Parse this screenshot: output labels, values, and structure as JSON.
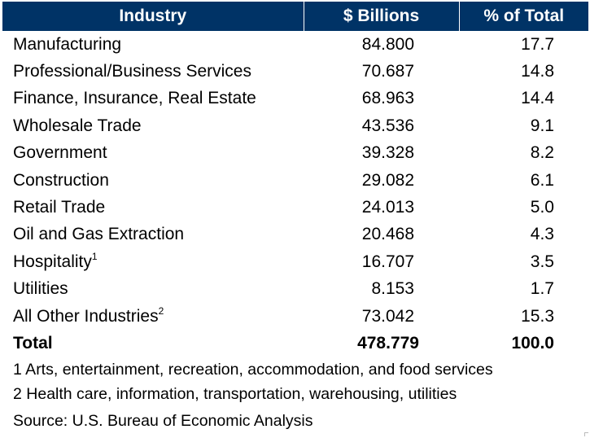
{
  "chart_data": {
    "type": "table",
    "columns": [
      "Industry",
      "$ Billions",
      "% of Total"
    ],
    "rows": [
      {
        "industry": "Manufacturing",
        "note": "",
        "billions": "84.800",
        "pct": "17.7"
      },
      {
        "industry": "Professional/Business Services",
        "note": "",
        "billions": "70.687",
        "pct": "14.8"
      },
      {
        "industry": "Finance, Insurance, Real Estate",
        "note": "",
        "billions": "68.963",
        "pct": "14.4"
      },
      {
        "industry": "Wholesale Trade",
        "note": "",
        "billions": "43.536",
        "pct": "9.1"
      },
      {
        "industry": "Government",
        "note": "",
        "billions": "39.328",
        "pct": "8.2"
      },
      {
        "industry": "Construction",
        "note": "",
        "billions": "29.082",
        "pct": "6.1"
      },
      {
        "industry": "Retail Trade",
        "note": "",
        "billions": "24.013",
        "pct": "5.0"
      },
      {
        "industry": "Oil and Gas Extraction",
        "note": "",
        "billions": "20.468",
        "pct": "4.3"
      },
      {
        "industry": "Hospitality",
        "note": "1",
        "billions": "16.707",
        "pct": "3.5"
      },
      {
        "industry": "Utilities",
        "note": "",
        "billions": "8.153",
        "pct": "1.7"
      },
      {
        "industry": "All Other Industries",
        "note": "2",
        "billions": "73.042",
        "pct": "15.3"
      }
    ],
    "total": {
      "label": "Total",
      "billions": "478.779",
      "pct": "100.0"
    },
    "footnotes": [
      "1 Arts, entertainment, recreation, accommodation, and food services",
      "2 Health care, information, transportation, warehousing, utilities"
    ],
    "source": "Source: U.S. Bureau of Economic Analysis",
    "colors": {
      "header_bg": "#003366",
      "header_text": "#ffffff"
    }
  }
}
